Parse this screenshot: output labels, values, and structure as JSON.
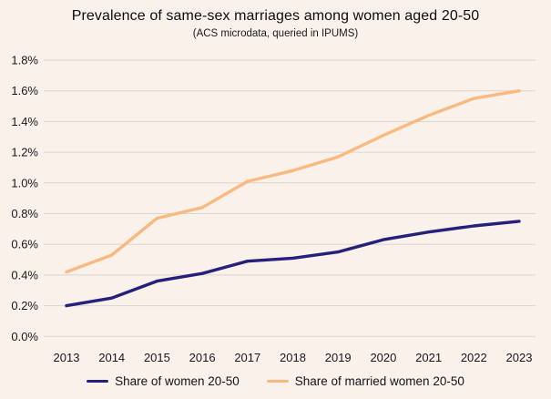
{
  "chart_data": {
    "type": "line",
    "title": "Prevalence of same-sex marriages among women aged 20-50",
    "subtitle": "(ACS microdata, queried in IPUMS)",
    "x": [
      "2013",
      "2014",
      "2015",
      "2016",
      "2017",
      "2018",
      "2019",
      "2020",
      "2021",
      "2022",
      "2023"
    ],
    "series": [
      {
        "name": "Share of women 20-50",
        "color": "#25217B",
        "values": [
          0.2,
          0.25,
          0.36,
          0.41,
          0.49,
          0.51,
          0.55,
          0.63,
          0.68,
          0.72,
          0.75
        ]
      },
      {
        "name": "Share of married women 20-50",
        "color": "#F9B97F",
        "values": [
          0.42,
          0.53,
          0.77,
          0.84,
          1.01,
          1.08,
          1.17,
          1.31,
          1.44,
          1.55,
          1.6
        ]
      }
    ],
    "ylim": [
      0,
      1.8
    ],
    "ytick_step": 0.2,
    "ytick_labels": [
      "0.0%",
      "0.2%",
      "0.4%",
      "0.6%",
      "0.8%",
      "1.0%",
      "1.2%",
      "1.4%",
      "1.6%",
      "1.8%"
    ],
    "grid": true,
    "legend_position": "bottom"
  },
  "colors": {
    "background": "#FAF1EA",
    "gridline": "#D8D5D1",
    "tick_text": "#17171E",
    "title_text": "#0C0C13"
  }
}
